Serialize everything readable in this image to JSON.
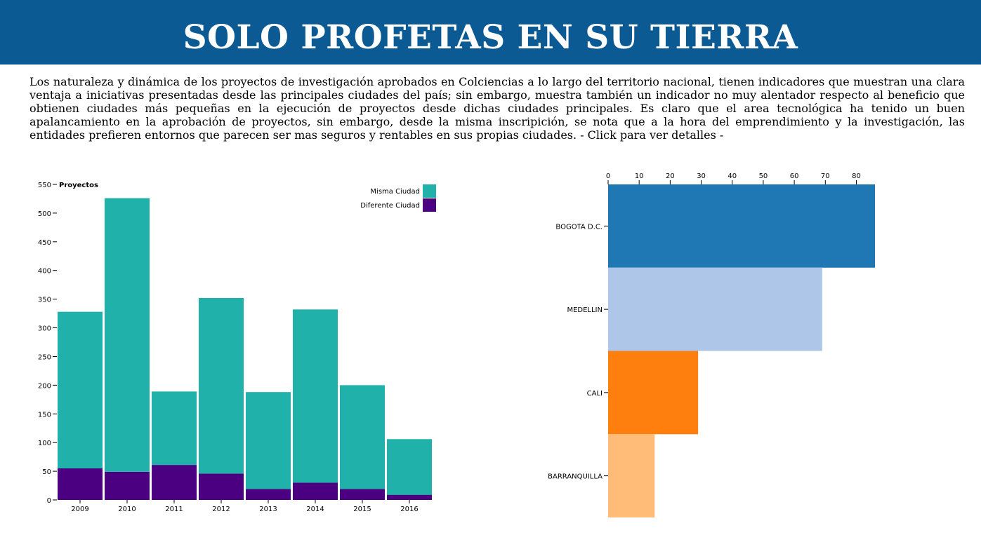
{
  "header": {
    "title": "SOLO PROFETAS EN SU TIERRA",
    "background": "#0c5a93"
  },
  "intro": {
    "text": "Los naturaleza y dinámica de los proyectos de investigación aprobados en Colciencias a lo largo del territorio nacional, tienen indicadores que muestran una clara ventaja a iniciativas presentadas desde las principales ciudades del país; sin embargo, muestra también un indicador no muy alentador respecto al beneficio que obtienen ciudades más pequeñas en la ejecución de proyectos desde dichas ciudades principales. Es claro que el area tecnológica ha tenido un buen apalancamiento en la aprobación de proyectos, sin embargo, desde la misma inscripición, se nota que a la hora del emprendimiento y la investigación, las entidades prefieren entornos que parecen ser mas seguros y rentables en sus propias ciudades. - Click para ver detalles -"
  },
  "chart_data": [
    {
      "type": "bar",
      "stacked": true,
      "ylabel": "Proyectos",
      "categories": [
        "2009",
        "2010",
        "2011",
        "2012",
        "2013",
        "2014",
        "2015",
        "2016"
      ],
      "ylim": [
        0,
        550
      ],
      "yticks": [
        0,
        50,
        100,
        150,
        200,
        250,
        300,
        350,
        400,
        450,
        500,
        550
      ],
      "legend_position": "top-right",
      "series": [
        {
          "name": "Diferente Ciudad",
          "color": "#4b0082",
          "values": [
            55,
            49,
            61,
            46,
            19,
            30,
            19,
            9
          ]
        },
        {
          "name": "Misma Ciudad",
          "color": "#20b2aa",
          "values": [
            273,
            477,
            128,
            306,
            169,
            302,
            181,
            97
          ]
        }
      ]
    },
    {
      "type": "bar",
      "orientation": "horizontal",
      "categories": [
        "BOGOTA D.C.",
        "MEDELLIN",
        "CALI",
        "BARRANQUILLA"
      ],
      "values": [
        86,
        69,
        29,
        15
      ],
      "colors": [
        "#1f77b4",
        "#aec7e8",
        "#ff7f0e",
        "#ffbb78"
      ],
      "xlim": [
        0,
        86
      ],
      "xticks": [
        0,
        10,
        20,
        30,
        40,
        50,
        60,
        70,
        80
      ],
      "axis_position": "top"
    }
  ]
}
